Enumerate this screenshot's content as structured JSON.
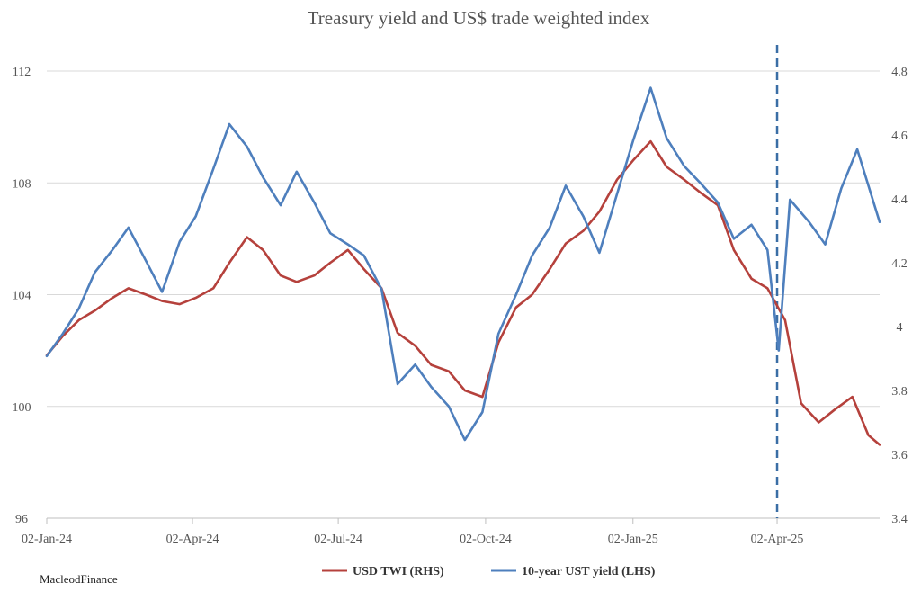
{
  "chart_data": {
    "type": "line",
    "title": "Treasury yield and US$ trade weighted index",
    "x_ticks": [
      "02-Jan-24",
      "02-Apr-24",
      "02-Jul-24",
      "02-Oct-24",
      "02-Jan-25",
      "02-Apr-25"
    ],
    "x_range": [
      "2024-01-02",
      "2025-06-05"
    ],
    "y_left": {
      "min": 96,
      "max": 112,
      "ticks": [
        "96",
        "100",
        "104",
        "108",
        "112"
      ]
    },
    "y_right": {
      "min": 3.4,
      "max": 4.8,
      "ticks": [
        "3.4",
        "3.6",
        "3.8",
        "4",
        "4.2",
        "4.4",
        "4.6",
        "4.8"
      ]
    },
    "grid": true,
    "marker": {
      "label_date": "2025-04-02",
      "style": "dashed",
      "color": "#3a6ea5"
    },
    "legend_position": "bottom",
    "series": [
      {
        "name": "USD TWI (RHS)",
        "axis": "right",
        "color": "#b5413c",
        "points": [
          [
            "2024-01-02",
            3.91
          ],
          [
            "2024-01-12",
            3.97
          ],
          [
            "2024-01-22",
            4.02
          ],
          [
            "2024-02-01",
            4.05
          ],
          [
            "2024-02-12",
            4.09
          ],
          [
            "2024-02-22",
            4.12
          ],
          [
            "2024-03-04",
            4.1
          ],
          [
            "2024-03-14",
            4.08
          ],
          [
            "2024-03-25",
            4.07
          ],
          [
            "2024-04-04",
            4.09
          ],
          [
            "2024-04-15",
            4.12
          ],
          [
            "2024-04-25",
            4.2
          ],
          [
            "2024-05-06",
            4.28
          ],
          [
            "2024-05-16",
            4.24
          ],
          [
            "2024-05-27",
            4.16
          ],
          [
            "2024-06-06",
            4.14
          ],
          [
            "2024-06-17",
            4.16
          ],
          [
            "2024-06-27",
            4.2
          ],
          [
            "2024-07-08",
            4.24
          ],
          [
            "2024-07-18",
            4.18
          ],
          [
            "2024-07-29",
            4.12
          ],
          [
            "2024-08-08",
            3.98
          ],
          [
            "2024-08-19",
            3.94
          ],
          [
            "2024-08-29",
            3.88
          ],
          [
            "2024-09-09",
            3.86
          ],
          [
            "2024-09-19",
            3.8
          ],
          [
            "2024-09-30",
            3.78
          ],
          [
            "2024-10-10",
            3.95
          ],
          [
            "2024-10-21",
            4.06
          ],
          [
            "2024-10-31",
            4.1
          ],
          [
            "2024-11-11",
            4.18
          ],
          [
            "2024-11-21",
            4.26
          ],
          [
            "2024-12-02",
            4.3
          ],
          [
            "2024-12-12",
            4.36
          ],
          [
            "2024-12-23",
            4.46
          ],
          [
            "2025-01-02",
            4.52
          ],
          [
            "2025-01-13",
            4.58
          ],
          [
            "2025-01-23",
            4.5
          ],
          [
            "2025-02-03",
            4.46
          ],
          [
            "2025-02-13",
            4.42
          ],
          [
            "2025-02-24",
            4.38
          ],
          [
            "2025-03-06",
            4.24
          ],
          [
            "2025-03-17",
            4.15
          ],
          [
            "2025-03-27",
            4.12
          ],
          [
            "2025-04-07",
            4.02
          ],
          [
            "2025-04-17",
            3.76
          ],
          [
            "2025-04-28",
            3.7
          ],
          [
            "2025-05-08",
            3.74
          ],
          [
            "2025-05-19",
            3.78
          ],
          [
            "2025-05-29",
            3.66
          ],
          [
            "2025-06-05",
            3.63
          ]
        ]
      },
      {
        "name": "10-year UST yield (LHS)",
        "axis": "left",
        "color": "#4e7fbd",
        "points": [
          [
            "2024-01-02",
            101.8
          ],
          [
            "2024-01-12",
            102.6
          ],
          [
            "2024-01-22",
            103.5
          ],
          [
            "2024-02-01",
            104.8
          ],
          [
            "2024-02-12",
            105.6
          ],
          [
            "2024-02-22",
            106.4
          ],
          [
            "2024-03-04",
            105.2
          ],
          [
            "2024-03-14",
            104.1
          ],
          [
            "2024-03-25",
            105.9
          ],
          [
            "2024-04-04",
            106.8
          ],
          [
            "2024-04-15",
            108.5
          ],
          [
            "2024-04-25",
            110.1
          ],
          [
            "2024-05-06",
            109.3
          ],
          [
            "2024-05-16",
            108.2
          ],
          [
            "2024-05-27",
            107.2
          ],
          [
            "2024-06-06",
            108.4
          ],
          [
            "2024-06-17",
            107.3
          ],
          [
            "2024-06-27",
            106.2
          ],
          [
            "2024-07-08",
            105.8
          ],
          [
            "2024-07-18",
            105.4
          ],
          [
            "2024-07-29",
            104.2
          ],
          [
            "2024-08-08",
            100.8
          ],
          [
            "2024-08-19",
            101.5
          ],
          [
            "2024-08-29",
            100.7
          ],
          [
            "2024-09-09",
            100.0
          ],
          [
            "2024-09-19",
            98.8
          ],
          [
            "2024-09-30",
            99.8
          ],
          [
            "2024-10-10",
            102.6
          ],
          [
            "2024-10-21",
            104.0
          ],
          [
            "2024-10-31",
            105.4
          ],
          [
            "2024-11-11",
            106.4
          ],
          [
            "2024-11-21",
            107.9
          ],
          [
            "2024-12-02",
            106.8
          ],
          [
            "2024-12-12",
            105.5
          ],
          [
            "2024-12-23",
            107.6
          ],
          [
            "2025-01-02",
            109.5
          ],
          [
            "2025-01-13",
            111.4
          ],
          [
            "2025-01-23",
            109.6
          ],
          [
            "2025-02-03",
            108.6
          ],
          [
            "2025-02-13",
            108.0
          ],
          [
            "2025-02-24",
            107.3
          ],
          [
            "2025-03-06",
            106.0
          ],
          [
            "2025-03-17",
            106.5
          ],
          [
            "2025-03-27",
            105.6
          ],
          [
            "2025-04-03",
            102.0
          ],
          [
            "2025-04-10",
            107.4
          ],
          [
            "2025-04-22",
            106.6
          ],
          [
            "2025-05-02",
            105.8
          ],
          [
            "2025-05-12",
            107.8
          ],
          [
            "2025-05-22",
            109.2
          ],
          [
            "2025-06-05",
            106.6
          ]
        ]
      }
    ]
  },
  "watermark": "MacleodFinance"
}
